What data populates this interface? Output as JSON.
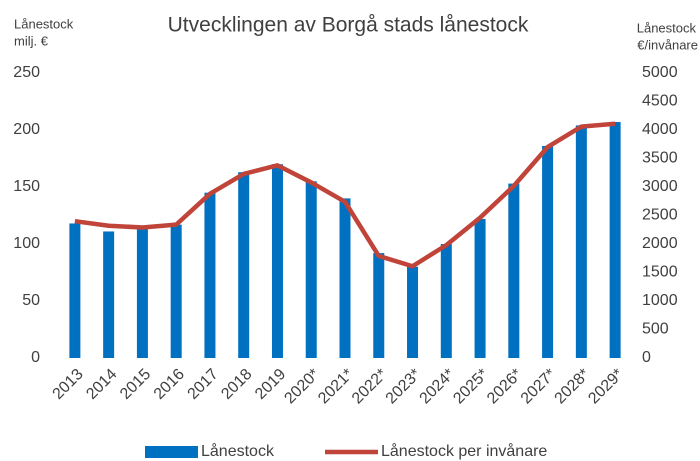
{
  "chart_data": {
    "type": "bar_line",
    "title": "Utvecklingen av Borgå stads lånestock",
    "ylabel": [
      "Lånestock",
      "milj. €"
    ],
    "y2label": [
      "Lånestock",
      "€/invånare"
    ],
    "categories": [
      "2013",
      "2014",
      "2015",
      "2016",
      "2017",
      "2018",
      "2019",
      "2020*",
      "2021*",
      "2022*",
      "2023*",
      "2024*",
      "2025*",
      "2026*",
      "2027*",
      "2028*",
      "2029*"
    ],
    "series": [
      {
        "name": "Lånestock",
        "type": "bar",
        "color": "#0070c0",
        "values": [
          118,
          111,
          113,
          117,
          145,
          163,
          170,
          155,
          140,
          92,
          80,
          100,
          122,
          153,
          186,
          204,
          207
        ]
      },
      {
        "name": "Lånestock per invånare",
        "type": "line",
        "axis": "y2",
        "color": "#c0443a",
        "values": [
          2400,
          2320,
          2290,
          2340,
          2880,
          3230,
          3380,
          3080,
          2740,
          1790,
          1610,
          1980,
          2460,
          3020,
          3700,
          4060,
          4110
        ]
      }
    ],
    "ylim": [
      0,
      250
    ],
    "yticks": [
      0,
      50,
      100,
      150,
      200,
      250
    ],
    "y2lim": [
      0,
      5000
    ],
    "y2ticks": [
      0,
      500,
      1000,
      1500,
      2000,
      2500,
      3000,
      3500,
      4000,
      4500,
      5000
    ],
    "grid": false,
    "legend": "bottom"
  }
}
